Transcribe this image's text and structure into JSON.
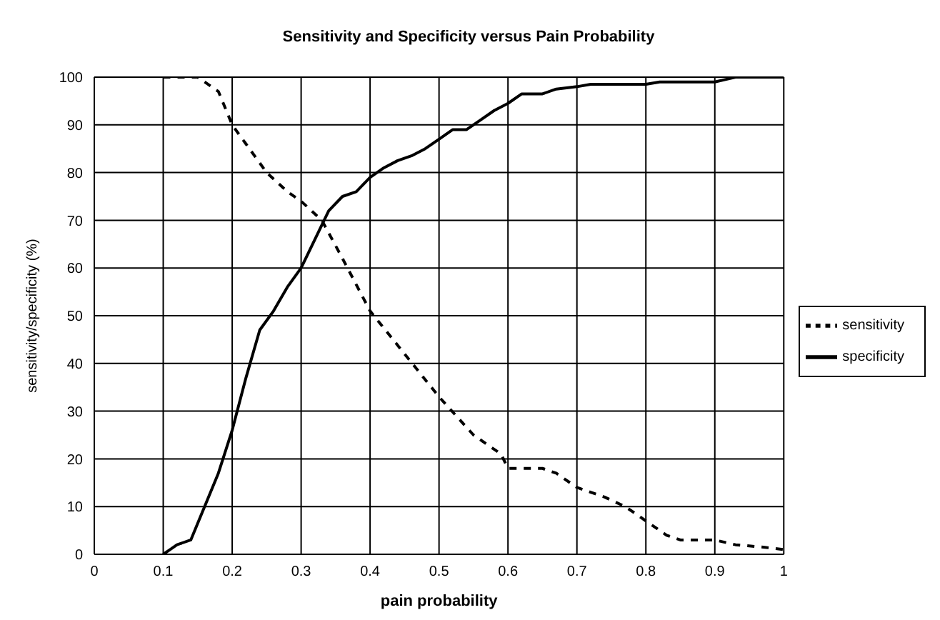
{
  "chart_data": {
    "type": "line",
    "title": "Sensitivity and Specificity versus Pain Probability",
    "xlabel": "pain probability",
    "ylabel": "sensitivity/specificity (%)",
    "xlim": [
      0,
      1
    ],
    "xticks": [
      0,
      0.1,
      0.2,
      0.3,
      0.4,
      0.5,
      0.6,
      0.7,
      0.8,
      0.9,
      1
    ],
    "ylim": [
      0,
      100
    ],
    "yticks": [
      0,
      10,
      20,
      30,
      40,
      50,
      60,
      70,
      80,
      90,
      100
    ],
    "grid": true,
    "legend": "right",
    "marker": "none",
    "series": [
      {
        "name": "sensitivity",
        "color": "#000000",
        "line_style": "dashed",
        "x": [
          0.1,
          0.15,
          0.18,
          0.2,
          0.22,
          0.25,
          0.28,
          0.3,
          0.33,
          0.36,
          0.4,
          0.45,
          0.5,
          0.55,
          0.59,
          0.6,
          0.65,
          0.67,
          0.7,
          0.74,
          0.77,
          0.8,
          0.83,
          0.85,
          0.9,
          0.93,
          0.97,
          1
        ],
        "values": [
          100,
          100,
          97,
          90,
          86,
          80,
          76,
          74,
          70,
          62,
          51,
          42,
          33,
          25,
          21,
          18,
          18,
          17,
          14,
          12,
          10,
          7,
          4,
          3,
          3,
          2,
          1.5,
          1
        ]
      },
      {
        "name": "specificity",
        "color": "#000000",
        "line_style": "solid",
        "x": [
          0.1,
          0.11,
          0.12,
          0.14,
          0.16,
          0.18,
          0.2,
          0.22,
          0.24,
          0.26,
          0.28,
          0.3,
          0.32,
          0.34,
          0.36,
          0.38,
          0.4,
          0.42,
          0.44,
          0.46,
          0.48,
          0.5,
          0.52,
          0.54,
          0.56,
          0.58,
          0.6,
          0.62,
          0.65,
          0.67,
          0.7,
          0.72,
          0.8,
          0.82,
          0.9,
          0.93,
          1
        ],
        "values": [
          0,
          1,
          2,
          3,
          10,
          17,
          26,
          37,
          47,
          51,
          56,
          60,
          66,
          72,
          75,
          76,
          79,
          81,
          82.5,
          83.5,
          85,
          87,
          89,
          89,
          91,
          93,
          94.5,
          96.5,
          96.5,
          97.5,
          98,
          98.5,
          98.5,
          99,
          99,
          100,
          100
        ]
      }
    ]
  }
}
